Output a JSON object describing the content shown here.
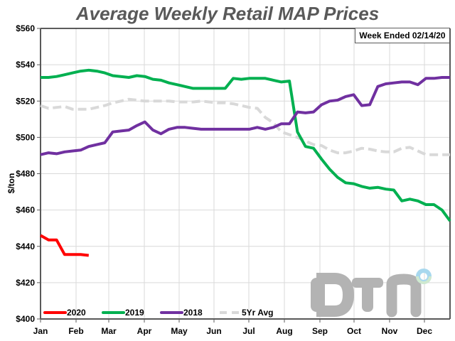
{
  "chart_data": {
    "type": "line",
    "title": "Average Weekly Retail MAP Prices",
    "annotation": "Week Ended 02/14/20",
    "xlabel": "",
    "ylabel": "$/ton",
    "ylim": [
      400,
      560
    ],
    "yticks": [
      400,
      420,
      440,
      460,
      480,
      500,
      520,
      540,
      560
    ],
    "ytick_labels": [
      "$400",
      "$420",
      "$440",
      "$460",
      "$480",
      "$500",
      "$520",
      "$540",
      "$560"
    ],
    "x_unit": "week",
    "xlim": [
      1,
      52
    ],
    "xtick_labels": [
      "Jan",
      "Feb",
      "Mar",
      "Apr",
      "May",
      "Jun",
      "Jul",
      "Aug",
      "Sep",
      "Oct",
      "Nov",
      "Dec"
    ],
    "grid": true,
    "legend_position": "bottom-left",
    "watermark": "DTN",
    "series": [
      {
        "name": "2020",
        "color": "#ff0000",
        "style": "solid",
        "values": [
          446,
          443.5,
          443.5,
          435.5,
          435.5,
          435.5,
          435
        ]
      },
      {
        "name": "2019",
        "color": "#00b050",
        "style": "solid",
        "values": [
          533,
          533,
          533.5,
          534.5,
          535.5,
          536.5,
          537,
          536.5,
          535.5,
          534,
          533.5,
          533,
          534,
          533.5,
          532,
          531.5,
          530,
          529,
          528,
          527,
          527,
          527,
          527,
          527,
          532.5,
          532,
          532.5,
          532.5,
          532.5,
          531.5,
          530.5,
          531,
          503,
          495,
          494,
          488,
          482.5,
          478,
          475,
          474.5,
          473,
          472,
          472.5,
          471.5,
          471,
          465,
          466,
          465,
          463,
          463,
          460,
          454
        ]
      },
      {
        "name": "2018",
        "color": "#7030a0",
        "style": "solid",
        "values": [
          490.5,
          491.5,
          491,
          492,
          492.5,
          493,
          495,
          496,
          497,
          503,
          503.5,
          504,
          506.5,
          508.5,
          504,
          502,
          504.5,
          505.5,
          505.5,
          505,
          504.5,
          504.5,
          504.5,
          504.5,
          504.5,
          504.5,
          504.5,
          505.5,
          504.5,
          505.5,
          507.5,
          507.5,
          514,
          513.5,
          514,
          518,
          520,
          520.5,
          522.5,
          523.5,
          517.5,
          518,
          528,
          529.5,
          530,
          530.5,
          530.5,
          529,
          532.5,
          532.5,
          533,
          533
        ]
      },
      {
        "name": "5Yr Avg",
        "color": "#d9d9d9",
        "style": "dashed",
        "values": [
          517.5,
          516,
          516.5,
          517,
          515.5,
          515.5,
          515.5,
          516.5,
          517.5,
          519,
          520,
          521,
          520.5,
          520,
          520,
          520,
          520,
          519.5,
          519.5,
          519.5,
          520,
          519.5,
          519,
          519,
          518.5,
          517.5,
          516.5,
          516,
          511,
          508,
          503,
          501.5,
          500,
          498,
          496,
          495.5,
          493,
          491.5,
          491.5,
          492.5,
          494,
          493.5,
          492.5,
          492,
          492,
          494,
          494.5,
          492.5,
          490.5,
          490.5,
          490.5,
          490.5
        ]
      }
    ]
  }
}
